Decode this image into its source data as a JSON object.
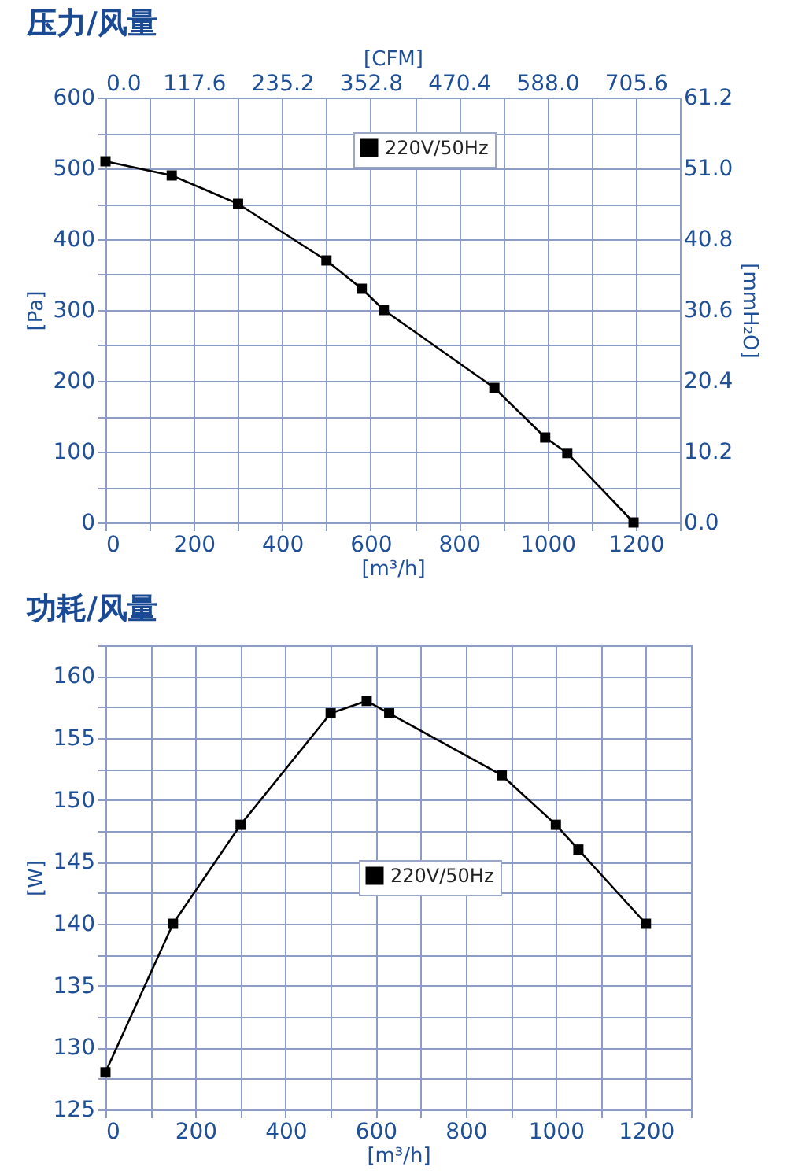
{
  "chart_data": [
    {
      "type": "line",
      "title": "压力/风量",
      "xlabel": "[m³/h]",
      "ylabel": "[Pa]",
      "x2label": "[CFM]",
      "y2label": "[mmH₂O]",
      "x": [
        0,
        150,
        300,
        500,
        580,
        630,
        880,
        995,
        1045,
        1195
      ],
      "series": [
        {
          "name": "220V/50Hz",
          "color": "#000000",
          "values": [
            510,
            490,
            450,
            370,
            330,
            300,
            190,
            120,
            98,
            0
          ]
        }
      ],
      "xlim": [
        0,
        1300
      ],
      "xticks": [
        0,
        {
          "value": 100,
          "label": null
        },
        200,
        {
          "value": 300,
          "label": null
        },
        400,
        {
          "value": 500,
          "label": null
        },
        600,
        {
          "value": 700,
          "label": null
        },
        800,
        {
          "value": 900,
          "label": null
        },
        1000,
        {
          "value": 1100,
          "label": null
        },
        1200,
        {
          "value": 1300,
          "label": null
        }
      ],
      "ylim": [
        0,
        600
      ],
      "yticks": [
        0,
        {
          "value": 50,
          "label": null
        },
        100,
        {
          "value": 150,
          "label": null
        },
        200,
        {
          "value": 250,
          "label": null
        },
        300,
        {
          "value": 350,
          "label": null
        },
        400,
        {
          "value": 450,
          "label": null
        },
        500,
        {
          "value": 550,
          "label": null
        },
        600
      ],
      "x2lim": [
        0,
        764.4
      ],
      "x2ticks": [
        {
          "value": 0,
          "label": "0.0"
        },
        117.6,
        235.2,
        352.8,
        470.4,
        {
          "value": 588,
          "label": "588.0"
        },
        705.6
      ],
      "y2lim": [
        0,
        61.2
      ],
      "y2ticks": [
        {
          "value": 0,
          "label": "0.0"
        },
        10.2,
        20.4,
        30.6,
        40.8,
        {
          "value": 51,
          "label": "51.0"
        },
        61.2
      ],
      "grid": true,
      "legend": "top",
      "marker": "square",
      "line_style": "solid"
    },
    {
      "type": "line",
      "title": "功耗/风量",
      "xlabel": "[m³/h]",
      "ylabel": "[W]",
      "x": [
        0,
        150,
        300,
        500,
        580,
        630,
        880,
        1000,
        1050,
        1200
      ],
      "series": [
        {
          "name": "220V/50Hz",
          "color": "#000000",
          "values": [
            128,
            140,
            148,
            157,
            158,
            157,
            152,
            148,
            146,
            140
          ]
        }
      ],
      "xlim": [
        0,
        1300
      ],
      "xticks": [
        0,
        {
          "value": 100,
          "label": null
        },
        200,
        {
          "value": 300,
          "label": null
        },
        400,
        {
          "value": 500,
          "label": null
        },
        600,
        {
          "value": 700,
          "label": null
        },
        800,
        {
          "value": 900,
          "label": null
        },
        1000,
        {
          "value": 1100,
          "label": null
        },
        1200,
        {
          "value": 1300,
          "label": null
        }
      ],
      "ylim": [
        125,
        162.5
      ],
      "yticks": [
        125,
        {
          "value": 127.5,
          "label": null
        },
        130,
        {
          "value": 132.5,
          "label": null
        },
        135,
        {
          "value": 137.5,
          "label": null
        },
        140,
        {
          "value": 142.5,
          "label": null
        },
        145,
        {
          "value": 147.5,
          "label": null
        },
        150,
        {
          "value": 152.5,
          "label": null
        },
        155,
        {
          "value": 157.5,
          "label": null
        },
        160,
        {
          "value": 162.5,
          "label": null
        }
      ],
      "grid": true,
      "legend": "center",
      "marker": "square",
      "line_style": "solid"
    }
  ]
}
